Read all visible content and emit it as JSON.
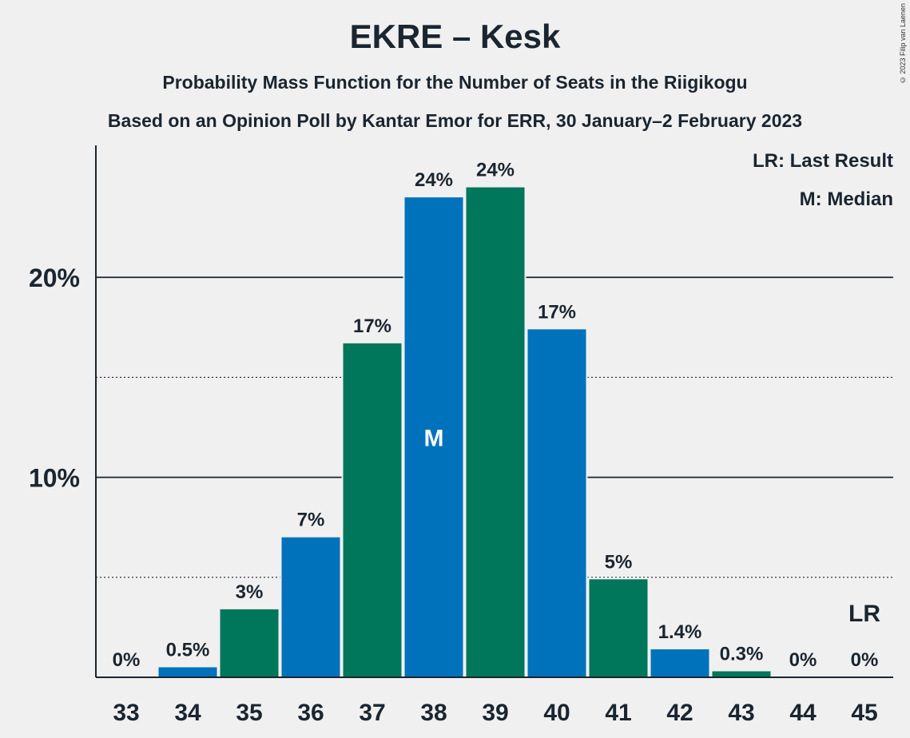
{
  "title": "EKRE – Kesk",
  "subtitle": "Probability Mass Function for the Number of Seats in the Riigikogu",
  "source": "Based on an Opinion Poll by Kantar Emor for ERR, 30 January–2 February 2023",
  "copyright": "© 2023 Filip van Laenen",
  "legend": {
    "last_result": "LR: Last Result",
    "median": "M: Median"
  },
  "colors": {
    "blue": "#0072bb",
    "green": "#00765a",
    "axis": "#1a2530"
  },
  "chart_data": {
    "type": "bar",
    "categories": [
      "33",
      "34",
      "35",
      "36",
      "37",
      "38",
      "39",
      "40",
      "41",
      "42",
      "43",
      "44",
      "45"
    ],
    "values": [
      0,
      0.5,
      3.4,
      7.0,
      16.7,
      24.0,
      24.5,
      17.4,
      4.9,
      1.4,
      0.3,
      0,
      0
    ],
    "data_labels": [
      "0%",
      "0.5%",
      "3%",
      "7%",
      "17%",
      "24%",
      "24%",
      "17%",
      "5%",
      "1.4%",
      "0.3%",
      "0%",
      "0%"
    ],
    "bar_colors": [
      "blue",
      "blue",
      "green",
      "blue",
      "green",
      "blue",
      "green",
      "blue",
      "green",
      "blue",
      "green",
      "blue",
      "green"
    ],
    "ylim": [
      0,
      26.6
    ],
    "major_ticks": [
      10,
      20
    ],
    "minor_ticks": [
      5,
      15
    ],
    "y_tick_labels": [
      "10%",
      "20%"
    ],
    "median_category": "38",
    "median_label": "M",
    "last_result_category": "45",
    "last_result_label": "LR",
    "grid": true,
    "legend_position": "top-right"
  }
}
